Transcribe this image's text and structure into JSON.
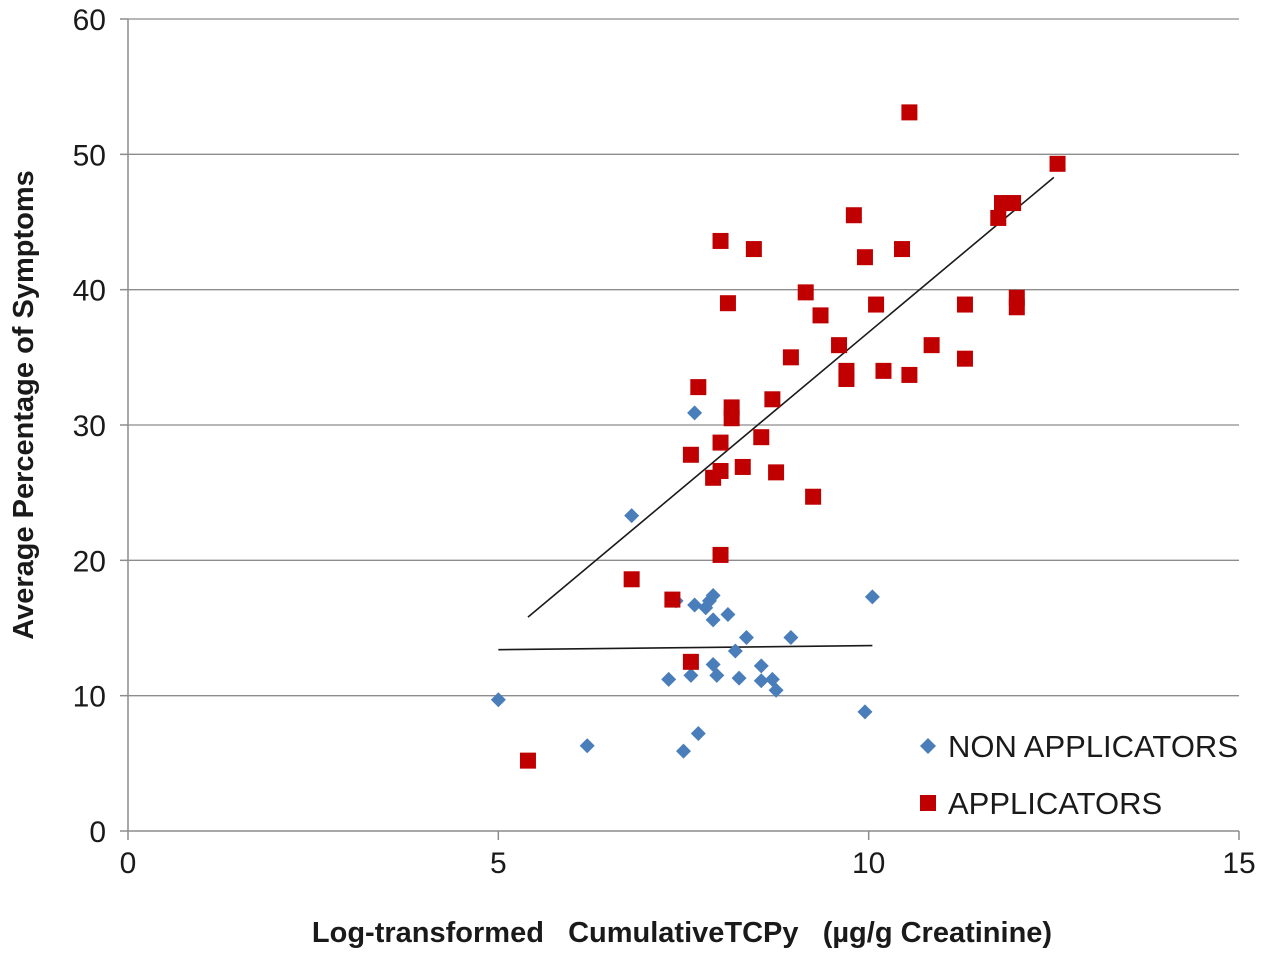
{
  "chart_data": {
    "type": "scatter",
    "title": "",
    "xlabel": "Log-transformed   CumulativeTCPy   (µg/g Creatinine)",
    "ylabel": "Average Percentage of Symptoms",
    "xlim": [
      0,
      15
    ],
    "ylim": [
      0,
      60
    ],
    "xticks": [
      0,
      5,
      10,
      15
    ],
    "yticks": [
      0,
      10,
      20,
      30,
      40,
      50,
      60
    ],
    "grid": "horizontal",
    "legend_position": "bottom-right",
    "series": [
      {
        "name": "NON APPLICATORS",
        "marker": "diamond",
        "color": "#4a7ebb",
        "points": [
          [
            5.0,
            9.7
          ],
          [
            6.2,
            6.3
          ],
          [
            6.8,
            23.3
          ],
          [
            7.3,
            11.2
          ],
          [
            7.4,
            17.0
          ],
          [
            7.5,
            5.9
          ],
          [
            7.6,
            11.5
          ],
          [
            7.65,
            16.7
          ],
          [
            7.65,
            30.9
          ],
          [
            7.7,
            7.2
          ],
          [
            7.8,
            16.5
          ],
          [
            7.85,
            17.0
          ],
          [
            7.9,
            17.4
          ],
          [
            7.9,
            12.3
          ],
          [
            7.9,
            15.6
          ],
          [
            7.95,
            11.5
          ],
          [
            8.1,
            16.0
          ],
          [
            8.2,
            13.3
          ],
          [
            8.25,
            11.3
          ],
          [
            8.35,
            14.3
          ],
          [
            8.55,
            11.1
          ],
          [
            8.55,
            12.2
          ],
          [
            8.7,
            11.2
          ],
          [
            8.75,
            10.4
          ],
          [
            8.95,
            14.3
          ],
          [
            9.95,
            8.8
          ],
          [
            10.05,
            17.3
          ]
        ],
        "trendline": {
          "x": [
            5.0,
            10.05
          ],
          "y": [
            13.4,
            13.7
          ]
        }
      },
      {
        "name": "APPLICATORS",
        "marker": "square",
        "color": "#c00000",
        "points": [
          [
            5.4,
            5.2
          ],
          [
            6.8,
            18.6
          ],
          [
            7.35,
            17.1
          ],
          [
            7.6,
            12.5
          ],
          [
            7.6,
            27.8
          ],
          [
            7.7,
            32.8
          ],
          [
            7.9,
            26.1
          ],
          [
            8.0,
            26.6
          ],
          [
            8.0,
            28.7
          ],
          [
            8.0,
            20.4
          ],
          [
            8.0,
            43.6
          ],
          [
            8.1,
            39.0
          ],
          [
            8.15,
            31.3
          ],
          [
            8.15,
            30.5
          ],
          [
            8.3,
            26.9
          ],
          [
            8.45,
            43.0
          ],
          [
            8.55,
            29.1
          ],
          [
            8.7,
            31.9
          ],
          [
            8.75,
            26.5
          ],
          [
            8.95,
            35.0
          ],
          [
            9.15,
            39.8
          ],
          [
            9.25,
            24.7
          ],
          [
            9.35,
            38.1
          ],
          [
            9.6,
            35.9
          ],
          [
            9.7,
            34.0
          ],
          [
            9.7,
            33.4
          ],
          [
            9.8,
            45.5
          ],
          [
            9.95,
            42.4
          ],
          [
            10.1,
            38.9
          ],
          [
            10.2,
            34.0
          ],
          [
            10.45,
            43.0
          ],
          [
            10.55,
            53.1
          ],
          [
            10.55,
            33.7
          ],
          [
            10.85,
            35.9
          ],
          [
            11.3,
            38.9
          ],
          [
            11.3,
            34.9
          ],
          [
            11.75,
            45.3
          ],
          [
            11.8,
            46.4
          ],
          [
            11.95,
            46.4
          ],
          [
            12.0,
            39.4
          ],
          [
            12.0,
            38.7
          ],
          [
            12.55,
            49.3
          ]
        ],
        "trendline": {
          "x": [
            5.4,
            12.5
          ],
          "y": [
            15.8,
            48.3
          ]
        }
      }
    ]
  }
}
